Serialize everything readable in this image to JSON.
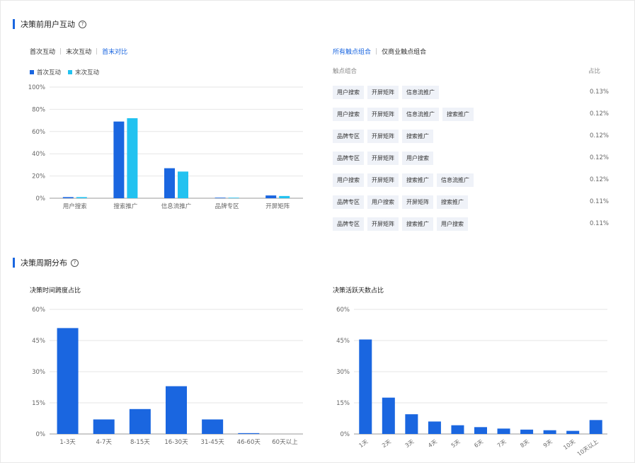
{
  "section1": {
    "title": "决策前用户互动",
    "help": "?"
  },
  "section2": {
    "title": "决策周期分布",
    "help": "?"
  },
  "toggle_left": {
    "items": [
      "首次互动",
      "末次互动",
      "首末对比"
    ],
    "active_index": 2
  },
  "toggle_right": {
    "items": [
      "所有触点组合",
      "仅商业触点组合"
    ],
    "active_index": 0
  },
  "legend": [
    {
      "label": "首次互动",
      "color": "#1a66e0"
    },
    {
      "label": "末次互动",
      "color": "#22c2f0"
    }
  ],
  "combo_table": {
    "header": [
      "触点组合",
      "占比"
    ],
    "rows": [
      {
        "chips": [
          "用户搜索",
          "开屏矩阵",
          "信息流推广"
        ],
        "pct": "0.13%"
      },
      {
        "chips": [
          "用户搜索",
          "开屏矩阵",
          "信息流推广",
          "搜索推广"
        ],
        "pct": "0.12%"
      },
      {
        "chips": [
          "品牌专区",
          "开屏矩阵",
          "搜索推广"
        ],
        "pct": "0.12%"
      },
      {
        "chips": [
          "品牌专区",
          "开屏矩阵",
          "用户搜索"
        ],
        "pct": "0.12%"
      },
      {
        "chips": [
          "用户搜索",
          "开屏矩阵",
          "搜索推广",
          "信息流推广"
        ],
        "pct": "0.12%"
      },
      {
        "chips": [
          "品牌专区",
          "用户搜索",
          "开屏矩阵",
          "搜索推广"
        ],
        "pct": "0.11%"
      },
      {
        "chips": [
          "品牌专区",
          "开屏矩阵",
          "搜索推广",
          "用户搜索"
        ],
        "pct": "0.11%"
      }
    ]
  },
  "chart_data": [
    {
      "type": "bar",
      "title": "",
      "categories": [
        "用户搜索",
        "搜索推广",
        "信息流推广",
        "品牌专区",
        "开屏矩阵"
      ],
      "series": [
        {
          "name": "首次互动",
          "values": [
            1,
            69,
            27,
            0.5,
            2.5
          ],
          "color": "#1a66e0"
        },
        {
          "name": "末次互动",
          "values": [
            1,
            72,
            24,
            0.5,
            2
          ],
          "color": "#22c2f0"
        }
      ],
      "ylim": [
        0,
        100
      ],
      "yticks": [
        "0%",
        "20%",
        "40%",
        "60%",
        "80%",
        "100%"
      ],
      "ytick_values": [
        0,
        20,
        40,
        60,
        80,
        100
      ],
      "grid": true
    },
    {
      "type": "bar",
      "title": "决策时间跨度占比",
      "categories": [
        "1-3天",
        "4-7天",
        "8-15天",
        "16-30天",
        "31-45天",
        "46-60天",
        "60天以上"
      ],
      "series": [
        {
          "values": [
            51,
            7,
            12,
            23,
            7,
            0.4,
            0
          ],
          "color": "#1a66e0"
        }
      ],
      "ylim": [
        0,
        60
      ],
      "yticks": [
        "0%",
        "15%",
        "30%",
        "45%",
        "60%"
      ],
      "ytick_values": [
        0,
        15,
        30,
        45,
        60
      ],
      "grid": true
    },
    {
      "type": "bar",
      "title": "决策活跃天数占比",
      "categories": [
        "1天",
        "2天",
        "3天",
        "4天",
        "5天",
        "6天",
        "7天",
        "8天",
        "9天",
        "10天",
        "10天以上"
      ],
      "series": [
        {
          "values": [
            45.5,
            17.5,
            9.5,
            6,
            4.2,
            3.3,
            2.6,
            2.1,
            1.8,
            1.5,
            6.7
          ],
          "color": "#1a66e0"
        }
      ],
      "ylim": [
        0,
        60
      ],
      "yticks": [
        "0%",
        "15%",
        "30%",
        "45%",
        "60%"
      ],
      "ytick_values": [
        0,
        15,
        30,
        45,
        60
      ],
      "grid": true,
      "rotated_labels": true
    }
  ]
}
